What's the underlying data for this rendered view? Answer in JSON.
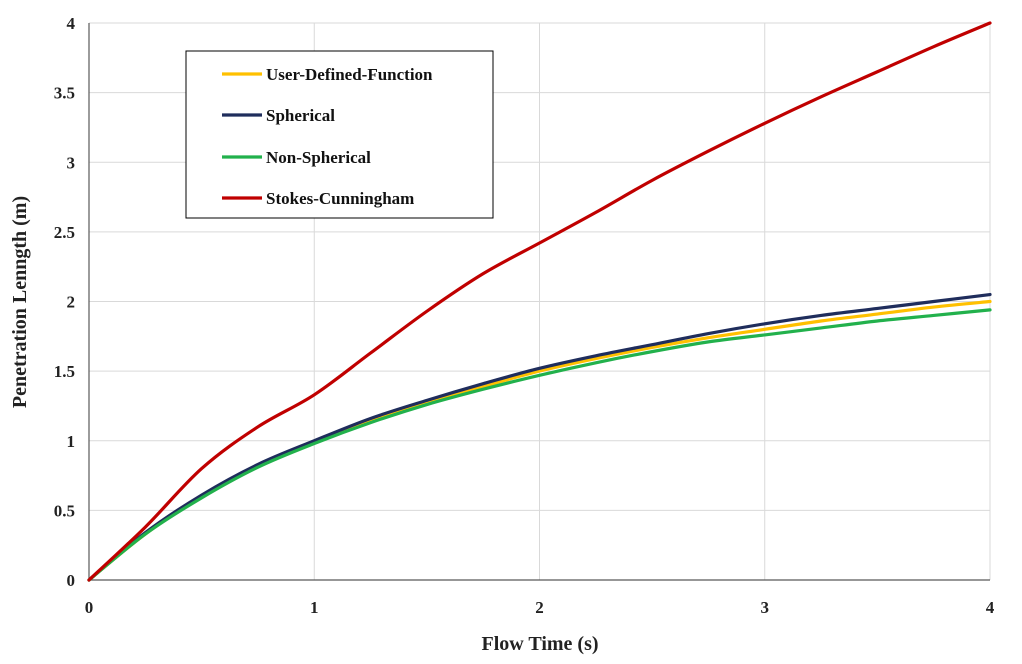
{
  "chart_data": {
    "type": "line",
    "title": "",
    "xlabel": "Flow Time (s)",
    "ylabel": "Penetration Lenngth (m)",
    "xlim": [
      0,
      4
    ],
    "ylim": [
      0,
      4
    ],
    "xticks": [
      0,
      1,
      2,
      3,
      4
    ],
    "yticks": [
      0,
      0.5,
      1,
      1.5,
      2,
      2.5,
      3,
      3.5,
      4
    ],
    "xtick_labels": [
      "0",
      "1",
      "2",
      "3",
      "4"
    ],
    "ytick_labels": [
      "0",
      "0.5",
      "1",
      "1.5",
      "2",
      "2.5",
      "3",
      "3.5",
      "4"
    ],
    "grid": true,
    "legend_position": "top-left",
    "x": [
      0,
      0.25,
      0.5,
      0.75,
      1,
      1.25,
      1.5,
      1.75,
      2,
      2.25,
      2.5,
      2.75,
      3,
      3.25,
      3.5,
      3.75,
      4
    ],
    "series": [
      {
        "name": "User-Defined-Function",
        "color": "#FFC000",
        "values": [
          0,
          0.33,
          0.6,
          0.82,
          0.99,
          1.14,
          1.27,
          1.39,
          1.5,
          1.59,
          1.67,
          1.74,
          1.8,
          1.86,
          1.91,
          1.96,
          2.0
        ]
      },
      {
        "name": "Spherical",
        "color": "#1F2D5C",
        "values": [
          0,
          0.34,
          0.61,
          0.83,
          1.0,
          1.16,
          1.29,
          1.41,
          1.52,
          1.61,
          1.69,
          1.77,
          1.84,
          1.9,
          1.95,
          2.0,
          2.05
        ]
      },
      {
        "name": "Non-Spherical",
        "color": "#22B14C",
        "values": [
          0,
          0.33,
          0.59,
          0.81,
          0.98,
          1.13,
          1.26,
          1.37,
          1.47,
          1.56,
          1.64,
          1.71,
          1.76,
          1.81,
          1.86,
          1.9,
          1.94
        ]
      },
      {
        "name": "Stokes-Cunningham",
        "color": "#C00000",
        "values": [
          0,
          0.38,
          0.8,
          1.1,
          1.33,
          1.63,
          1.93,
          2.2,
          2.42,
          2.64,
          2.87,
          3.08,
          3.28,
          3.47,
          3.65,
          3.83,
          4.0
        ]
      }
    ]
  }
}
